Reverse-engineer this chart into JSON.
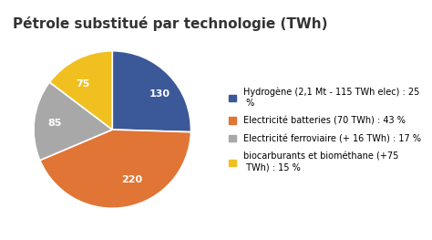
{
  "title": "Pétrole substitué par technologie (TWh)",
  "values": [
    130,
    220,
    85,
    75
  ],
  "labels": [
    "130",
    "220",
    "85",
    "75"
  ],
  "colors": [
    "#3b5998",
    "#e07535",
    "#a8a8a8",
    "#f0c020"
  ],
  "legend_labels": [
    "Hydrogène (2,1 Mt - 115 TWh elec) : 25\n %",
    "Electricité batteries (70 TWh) : 43 %",
    "Electricité ferroviaire (+ 16 TWh) : 17 %",
    "biocarburants et biométhane (+75\n TWh) : 15 %"
  ],
  "startangle": 90,
  "background_color": "#ffffff",
  "title_fontsize": 11,
  "label_fontsize": 8,
  "legend_fontsize": 7,
  "label_colors": [
    "white",
    "white",
    "white",
    "white"
  ]
}
